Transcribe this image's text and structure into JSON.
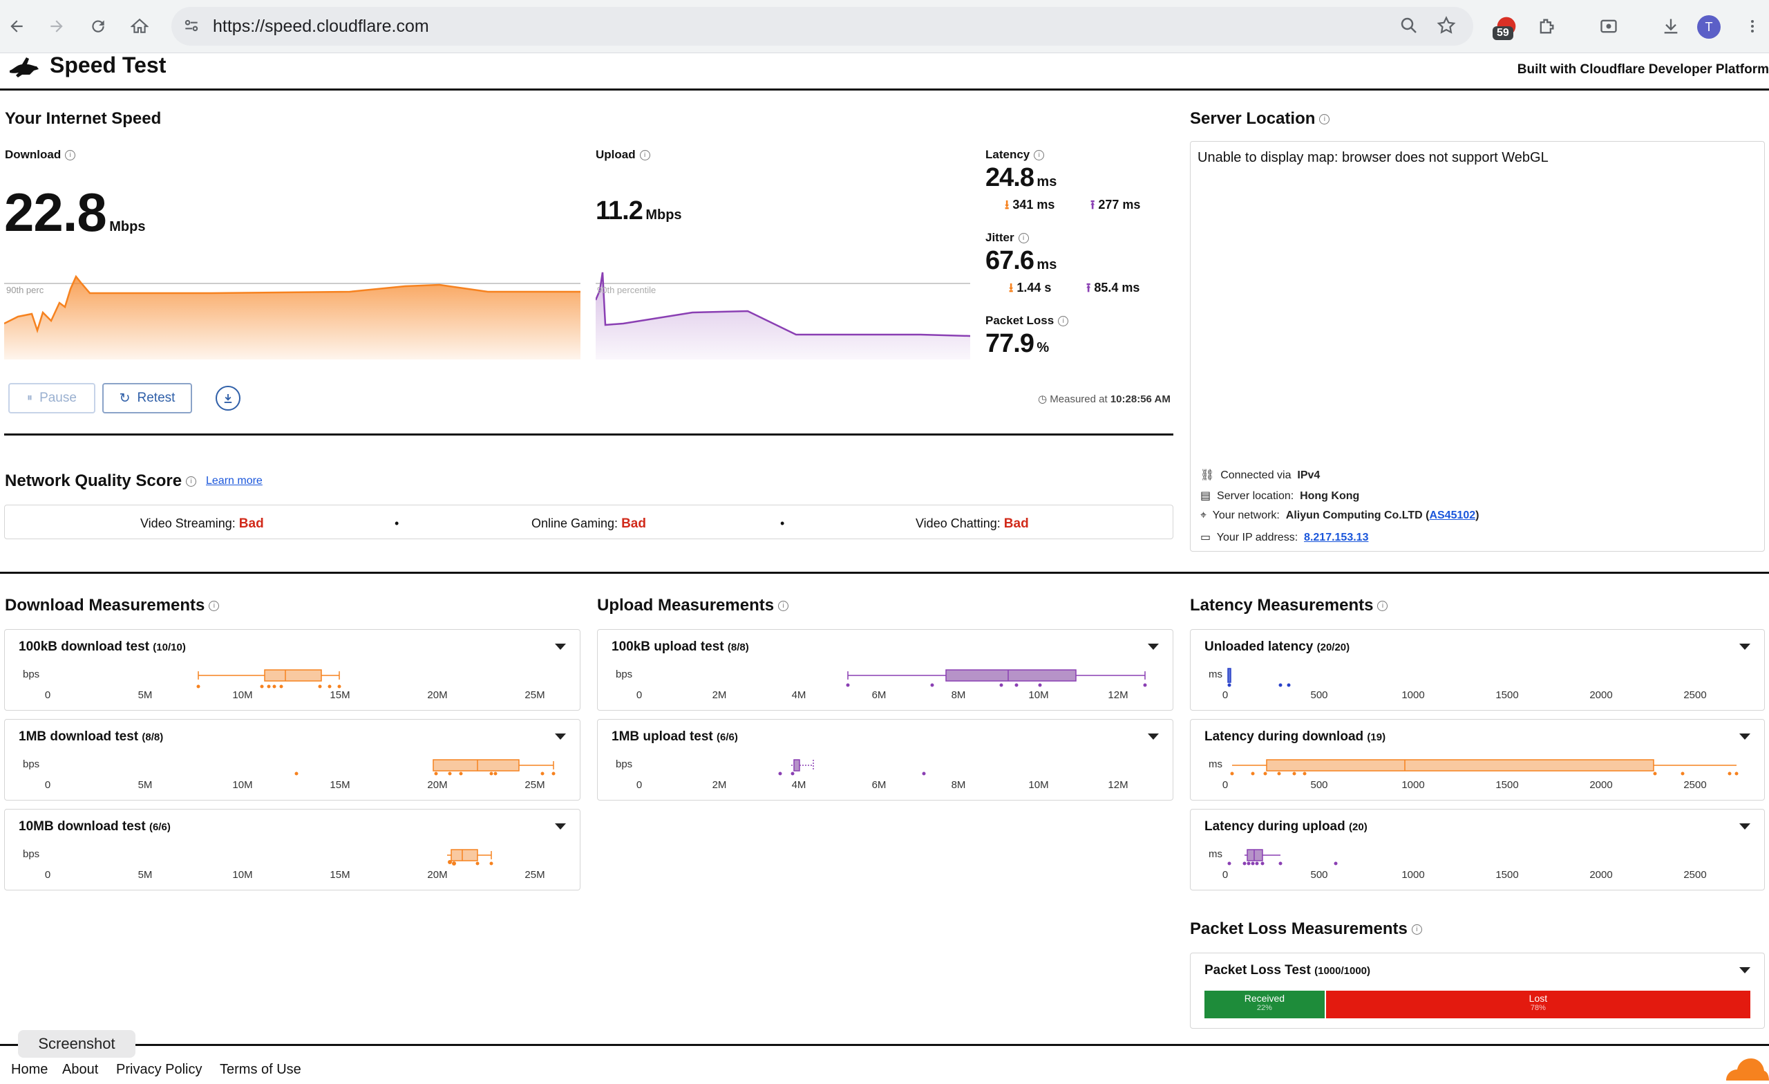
{
  "browser": {
    "url": "https://speed.cloudflare.com",
    "extension_badge": "59",
    "avatar_letter": "T"
  },
  "header": {
    "title": "Speed Test",
    "built_with": "Built with Cloudflare Developer Platform"
  },
  "speed": {
    "section_title": "Your Internet Speed",
    "download": {
      "label": "Download",
      "value": "22.8",
      "unit": "Mbps",
      "percentile": "90th perc"
    },
    "upload": {
      "label": "Upload",
      "value": "11.2",
      "unit": "Mbps",
      "percentile": "90th percentile"
    },
    "latency": {
      "label": "Latency",
      "value": "24.8",
      "unit": "ms",
      "down": "341 ms",
      "up": "277 ms"
    },
    "jitter": {
      "label": "Jitter",
      "value": "67.6",
      "unit": "ms",
      "down": "1.44 s",
      "up": "85.4 ms"
    },
    "packet_loss": {
      "label": "Packet Loss",
      "value": "77.9",
      "unit": "%"
    },
    "buttons": {
      "pause": "Pause",
      "retest": "Retest"
    },
    "measured_prefix": "Measured at",
    "measured_time": "10:28:56 AM"
  },
  "server": {
    "title": "Server Location",
    "map_message": "Unable to display map: browser does not support WebGL",
    "connected_label": "Connected via",
    "connected_value": "IPv4",
    "location_label": "Server location:",
    "location_value": "Hong Kong",
    "network_label": "Your network:",
    "network_value": "Aliyun Computing Co.LTD (",
    "network_asn": "AS45102",
    "network_close": ")",
    "ip_label": "Your IP address:",
    "ip_value": "8.217.153.13"
  },
  "quality": {
    "title": "Network Quality Score",
    "learn_more": "Learn more",
    "items": [
      {
        "label": "Video Streaming:",
        "score": "Bad"
      },
      {
        "label": "Online Gaming:",
        "score": "Bad"
      },
      {
        "label": "Video Chatting:",
        "score": "Bad"
      }
    ],
    "separator": "•"
  },
  "download_measurements": {
    "title": "Download Measurements",
    "unit": "bps",
    "ticks": [
      "0",
      "5M",
      "10M",
      "15M",
      "20M",
      "25M"
    ],
    "cards": [
      {
        "name": "100kB download test",
        "count": "(10/10)"
      },
      {
        "name": "1MB download test",
        "count": "(8/8)"
      },
      {
        "name": "10MB download test",
        "count": "(6/6)"
      }
    ]
  },
  "upload_measurements": {
    "title": "Upload Measurements",
    "unit": "bps",
    "ticks": [
      "0",
      "2M",
      "4M",
      "6M",
      "8M",
      "10M",
      "12M"
    ],
    "cards": [
      {
        "name": "100kB upload test",
        "count": "(8/8)"
      },
      {
        "name": "1MB upload test",
        "count": "(6/6)"
      }
    ]
  },
  "latency_measurements": {
    "title": "Latency Measurements",
    "unit": "ms",
    "ticks": [
      "0",
      "500",
      "1000",
      "1500",
      "2000",
      "2500"
    ],
    "cards": [
      {
        "name": "Unloaded latency",
        "count": "(20/20)"
      },
      {
        "name": "Latency during download",
        "count": "(19)"
      },
      {
        "name": "Latency during upload",
        "count": "(20)"
      }
    ]
  },
  "packet_loss_measurements": {
    "title": "Packet Loss Measurements",
    "card_name": "Packet Loss Test",
    "card_count": "(1000/1000)",
    "received_label": "Received",
    "received_pct": "22%",
    "received_fraction": 0.22,
    "lost_label": "Lost",
    "lost_pct": "78%"
  },
  "footer": {
    "links": [
      "Home",
      "About",
      "Privacy Policy",
      "Terms of Use"
    ],
    "tooltip": "Screenshot"
  },
  "colors": {
    "download": "#f6821f",
    "upload": "#8a3fb3",
    "latency_unloaded": "#2941c9",
    "received": "#1e8c3a",
    "lost": "#e31a0f",
    "bad": "#d12a1a"
  }
}
